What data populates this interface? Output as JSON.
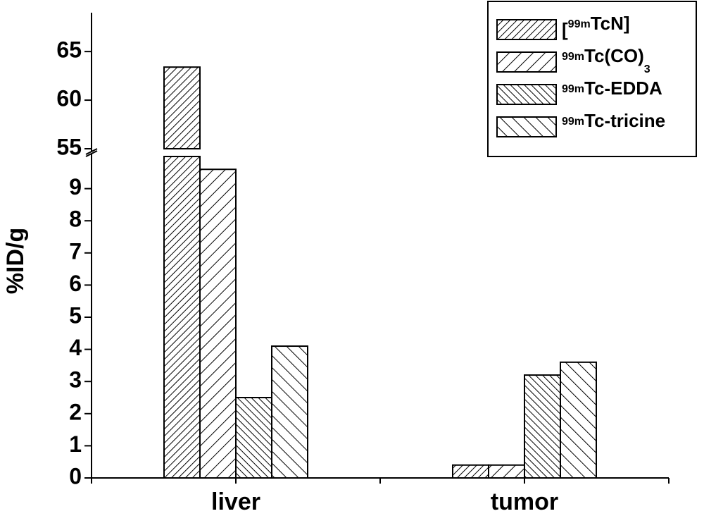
{
  "chart_data": {
    "type": "bar",
    "y_label": "%ID/g",
    "categories": [
      "liver",
      "tumor"
    ],
    "series": [
      {
        "name": "[99mTcN]",
        "hatch": "/",
        "spacing": 7,
        "values": [
          63.4,
          0.4
        ]
      },
      {
        "name": "99mTc(CO)3",
        "hatch": "/",
        "spacing": 12,
        "values": [
          9.6,
          0.4
        ]
      },
      {
        "name": "99mTc-EDDA",
        "hatch": "\\",
        "spacing": 7,
        "values": [
          2.5,
          3.2
        ]
      },
      {
        "name": "99mTc-tricine",
        "hatch": "\\",
        "spacing": 12,
        "values": [
          4.1,
          3.6
        ]
      }
    ],
    "ylim": [
      0,
      69
    ],
    "y_break": [
      10,
      55
    ],
    "yticks": [
      0,
      1,
      2,
      3,
      4,
      5,
      6,
      7,
      8,
      9,
      55,
      60,
      65
    ],
    "legend": "top-right"
  }
}
